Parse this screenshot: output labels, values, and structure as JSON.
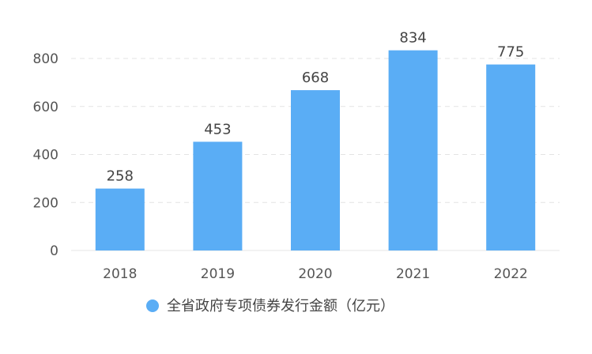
{
  "chart_data": {
    "type": "bar",
    "categories": [
      "2018",
      "2019",
      "2020",
      "2021",
      "2022"
    ],
    "series": [
      {
        "name": "全省政府专项债券发行金额（亿元）",
        "values": [
          258,
          453,
          668,
          834,
          775
        ],
        "color": "#5aadf5"
      }
    ],
    "ylim": [
      0,
      800
    ],
    "yticks": [
      0,
      200,
      400,
      600,
      800
    ],
    "grid": true,
    "legend_position": "bottom-center",
    "data_labels": true
  }
}
